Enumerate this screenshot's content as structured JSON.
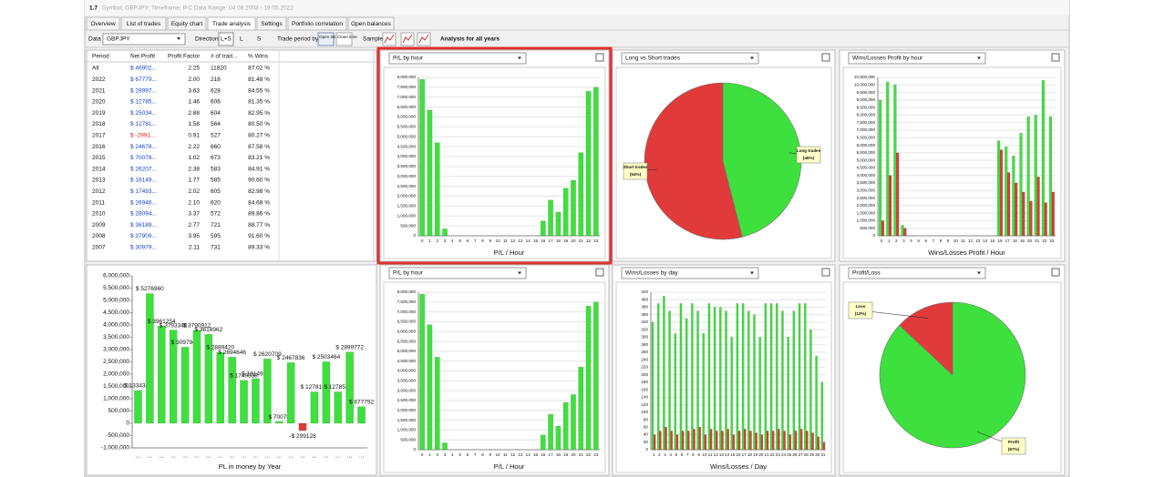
{
  "window": {
    "version": "1.7",
    "info": "Symbol: GBPJPY; Timeframe: IFC Data Range: 04.08.2003 - 19.05.2022"
  },
  "tabs": [
    "Overview",
    "List of trades",
    "Equity chart",
    "Trade analysis",
    "Settings",
    "Portfolio correlation",
    "Open balances"
  ],
  "toolbar": {
    "data_label": "Data",
    "symbol": "GBPJPY",
    "direction_label": "Direction",
    "directions": [
      "L+S",
      "L",
      "S"
    ],
    "trade_period_label": "Trade period by",
    "period_options": [
      "Open time",
      "Close time"
    ],
    "sample_label": "Sample",
    "analysis": "Analysis for all years"
  },
  "table": {
    "columns": [
      "Period",
      "Net Profit",
      "Profit Factor",
      "# of trad...",
      "% Wins"
    ],
    "rows": [
      [
        "All",
        "$ 46902...",
        "2.25",
        "11820",
        "87.02 %"
      ],
      [
        "2022",
        "$ 67779...",
        "2.00",
        "216",
        "81.48 %"
      ],
      [
        "2021",
        "$ 28997...",
        "3.63",
        "628",
        "84.55 %"
      ],
      [
        "2020",
        "$ 12785...",
        "1.46",
        "606",
        "81.35 %"
      ],
      [
        "2019",
        "$ 25034...",
        "2.88",
        "604",
        "82.95 %"
      ],
      [
        "2018",
        "$ 12781...",
        "1.58",
        "564",
        "80.50 %"
      ],
      [
        "2017",
        "$ -2991...",
        "0.91",
        "527",
        "80.27 %"
      ],
      [
        "2016",
        "$ 24678...",
        "2.22",
        "660",
        "87.58 %"
      ],
      [
        "2015",
        "$ 70078...",
        "1.02",
        "673",
        "83.21 %"
      ],
      [
        "2014",
        "$ 26207...",
        "2.38",
        "583",
        "84.91 %"
      ],
      [
        "2013",
        "$ 18149...",
        "1.77",
        "585",
        "90.60 %"
      ],
      [
        "2012",
        "$ 17493...",
        "2.02",
        "605",
        "82.98 %"
      ],
      [
        "2011",
        "$ 26946...",
        "2.10",
        "620",
        "84.68 %"
      ],
      [
        "2010",
        "$ 28094...",
        "3.37",
        "572",
        "89.86 %"
      ],
      [
        "2009",
        "$ 36189...",
        "2.77",
        "721",
        "88.77 %"
      ],
      [
        "2008",
        "$ 37909...",
        "3.95",
        "595",
        "91.60 %"
      ],
      [
        "2007",
        "$ 30979...",
        "2.11",
        "731",
        "89.33 %"
      ]
    ]
  },
  "chart_data": [
    {
      "type": "bar",
      "title": "P/L by hour",
      "xlabel": "P/L / Hour",
      "grid": true,
      "color": "#3ee03e",
      "categories": [
        0,
        1,
        2,
        3,
        4,
        5,
        6,
        7,
        8,
        9,
        10,
        11,
        12,
        13,
        14,
        15,
        16,
        17,
        18,
        19,
        20,
        21,
        22,
        23
      ],
      "values": [
        7900000,
        6350000,
        4700000,
        350000,
        0,
        0,
        0,
        0,
        0,
        0,
        0,
        0,
        0,
        0,
        0,
        0,
        750000,
        1800000,
        1200000,
        2400000,
        2800000,
        4200000,
        7300000,
        7500000
      ],
      "ylim": [
        0,
        8000000
      ],
      "yticks": [
        0,
        {
          "value": 500000,
          "label": "500,000"
        },
        {
          "value": 1000000,
          "label": "1,000,000"
        },
        {
          "value": 1500000,
          "label": "1,500,000"
        },
        {
          "value": 2000000,
          "label": "2,000,000"
        },
        {
          "value": 2500000,
          "label": "2,500,000"
        },
        {
          "value": 3000000,
          "label": "3,000,000"
        },
        {
          "value": 3500000,
          "label": "3,500,000"
        },
        {
          "value": 4000000,
          "label": "4,000,000"
        },
        {
          "value": 4500000,
          "label": "4,500,000"
        },
        {
          "value": 5000000,
          "label": "5,000,000"
        },
        {
          "value": 5500000,
          "label": "5,500,000"
        },
        {
          "value": 6000000,
          "label": "6,000,000"
        },
        {
          "value": 6500000,
          "label": "6,500,000"
        },
        {
          "value": 7000000,
          "label": "7,000,000"
        },
        {
          "value": 7500000,
          "label": "7,500,000"
        },
        {
          "value": 8000000,
          "label": "8,000,000"
        }
      ]
    },
    {
      "type": "pie",
      "title": "Long vs Short trades",
      "categories": [
        "Long trades",
        "Short trades"
      ],
      "values": [
        46,
        54
      ],
      "value_labels": [
        "(46%)",
        "(54%)"
      ],
      "colors": [
        "#3ee03e",
        "#e03a3a"
      ]
    },
    {
      "type": "bar",
      "title": "Wins/Losses Profit by hour",
      "xlabel": "Wins/Losses Profit / Hour",
      "grid": true,
      "categories": [
        0,
        1,
        2,
        3,
        4,
        5,
        6,
        7,
        8,
        9,
        10,
        11,
        12,
        13,
        14,
        15,
        16,
        17,
        18,
        19,
        20,
        21,
        22,
        23
      ],
      "series": [
        {
          "color": "#3ee03e",
          "values": [
            9000000,
            10200000,
            10000000,
            700000,
            0,
            0,
            0,
            0,
            0,
            0,
            0,
            0,
            0,
            0,
            0,
            0,
            6300000,
            5900000,
            5300000,
            6800000,
            7900000,
            8000000,
            10300000,
            7900000
          ]
        },
        {
          "color": "#e03a3a",
          "values": [
            1000000,
            4000000,
            5500000,
            500000,
            0,
            0,
            0,
            0,
            0,
            0,
            0,
            0,
            0,
            0,
            0,
            0,
            5700000,
            4200000,
            3500000,
            2900000,
            2300000,
            3900000,
            2200000,
            2900000
          ]
        }
      ],
      "ylim": [
        0,
        10500000
      ],
      "yticks": [
        0,
        {
          "value": 500000,
          "label": "500,000"
        },
        {
          "value": 1000000,
          "label": "1,000,000"
        },
        {
          "value": 1500000,
          "label": "1,500,000"
        },
        {
          "value": 2000000,
          "label": "2,000,000"
        },
        {
          "value": 2500000,
          "label": "2,500,000"
        },
        {
          "value": 3000000,
          "label": "3,000,000"
        },
        {
          "value": 3500000,
          "label": "3,500,000"
        },
        {
          "value": 4000000,
          "label": "4,000,000"
        },
        {
          "value": 4500000,
          "label": "4,500,000"
        },
        {
          "value": 5000000,
          "label": "5,000,000"
        },
        {
          "value": 5500000,
          "label": "5,500,000"
        },
        {
          "value": 6000000,
          "label": "6,000,000"
        },
        {
          "value": 6500000,
          "label": "6,500,000"
        },
        {
          "value": 7000000,
          "label": "7,000,000"
        },
        {
          "value": 7500000,
          "label": "7,500,000"
        },
        {
          "value": 8000000,
          "label": "8,000,000"
        },
        {
          "value": 8500000,
          "label": "8,500,000"
        },
        {
          "value": 9000000,
          "label": "9,000,000"
        },
        {
          "value": 9500000,
          "label": "9,500,000"
        },
        {
          "value": 10000000,
          "label": "10,000,000"
        },
        {
          "value": 10500000,
          "label": "10,500,000"
        }
      ]
    },
    {
      "type": "bar",
      "xlabel": "PL in money by Year",
      "grid": false,
      "categories": [
        "...",
        "...",
        "...",
        "...",
        "...",
        "...",
        "...",
        "...",
        "...",
        "...",
        "...",
        "...",
        "...",
        "...",
        "...",
        "...",
        "...",
        "...",
        "...",
        "..."
      ],
      "values": [
        1334346,
        5276960,
        3961254,
        3793346,
        3097946,
        3790912,
        3618962,
        2889420,
        2694646,
        1749338,
        1814930,
        2620709,
        70078,
        2467836,
        -299128,
        1278189,
        2503464,
        1278539,
        2899772,
        677792
      ],
      "value_labels": [
        "$ 1334346",
        "$ 5276960",
        "$ 3961254",
        "$ 3793346",
        "$ 3097946",
        "$ 3790912",
        "$ 3618962",
        "$ 2889420",
        "$ 2694646",
        "$ 1749338",
        "$ 1814930",
        "$ 2620709",
        "$ 70078",
        "$ 2467836",
        "-$ 299128",
        "$ 1278189",
        "$ 2503464",
        "$ 1278539",
        "$ 2899772",
        "$ 677792"
      ],
      "colors": {
        "positive": "#3ee03e",
        "negative": "#e03a3a"
      },
      "ylim": [
        -1000000,
        6000000
      ],
      "yticks": [
        {
          "value": -1000000,
          "label": "-1,000,000"
        },
        {
          "value": -500000,
          "label": "-500,000"
        },
        0,
        {
          "value": 500000,
          "label": "500,000"
        },
        {
          "value": 1000000,
          "label": "1,000,000"
        },
        {
          "value": 1500000,
          "label": "1,500,000"
        },
        {
          "value": 2000000,
          "label": "2,000,000"
        },
        {
          "value": 2500000,
          "label": "2,500,000"
        },
        {
          "value": 3000000,
          "label": "3,000,000"
        },
        {
          "value": 3500000,
          "label": "3,500,000"
        },
        {
          "value": 4000000,
          "label": "4,000,000"
        },
        {
          "value": 4500000,
          "label": "4,500,000"
        },
        {
          "value": 5000000,
          "label": "5,000,000"
        },
        {
          "value": 5500000,
          "label": "5,500,000"
        },
        {
          "value": 6000000,
          "label": "6,000,000"
        }
      ]
    },
    {
      "type": "bar",
      "title": "P/L by hour",
      "xlabel": "P/L / Hour",
      "grid": true,
      "color": "#3ee03e",
      "categories": [
        0,
        1,
        2,
        3,
        4,
        5,
        6,
        7,
        8,
        9,
        10,
        11,
        12,
        13,
        14,
        15,
        16,
        17,
        18,
        19,
        20,
        21,
        22,
        23
      ],
      "values": [
        7900000,
        6350000,
        4700000,
        350000,
        0,
        0,
        0,
        0,
        0,
        0,
        0,
        0,
        0,
        0,
        0,
        0,
        750000,
        1800000,
        1200000,
        2400000,
        2800000,
        4200000,
        7300000,
        7500000
      ],
      "ylim": [
        0,
        8000000
      ],
      "yticks": [
        0,
        {
          "value": 500000,
          "label": "500,000"
        },
        {
          "value": 1000000,
          "label": "1,000,000"
        },
        {
          "value": 1500000,
          "label": "1,500,000"
        },
        {
          "value": 2000000,
          "label": "2,000,000"
        },
        {
          "value": 2500000,
          "label": "2,500,000"
        },
        {
          "value": 3000000,
          "label": "3,000,000"
        },
        {
          "value": 3500000,
          "label": "3,500,000"
        },
        {
          "value": 4000000,
          "label": "4,000,000"
        },
        {
          "value": 4500000,
          "label": "4,500,000"
        },
        {
          "value": 5000000,
          "label": "5,000,000"
        },
        {
          "value": 5500000,
          "label": "5,500,000"
        },
        {
          "value": 6000000,
          "label": "6,000,000"
        },
        {
          "value": 6500000,
          "label": "6,500,000"
        },
        {
          "value": 7000000,
          "label": "7,000,000"
        },
        {
          "value": 7500000,
          "label": "7,500,000"
        },
        {
          "value": 8000000,
          "label": "8,000,000"
        }
      ]
    },
    {
      "type": "bar",
      "title": "Wins/Losses by day",
      "xlabel": "Wins/Losses / Day",
      "grid": true,
      "categories": [
        1,
        2,
        3,
        4,
        5,
        6,
        7,
        8,
        9,
        10,
        11,
        12,
        13,
        14,
        15,
        16,
        17,
        18,
        19,
        20,
        21,
        22,
        23,
        24,
        25,
        26,
        27,
        28,
        29,
        30,
        31
      ],
      "series": [
        {
          "color": "#3ee03e",
          "values": [
            340,
            390,
            410,
            370,
            310,
            390,
            350,
            390,
            370,
            310,
            390,
            380,
            380,
            370,
            300,
            390,
            390,
            370,
            360,
            300,
            390,
            390,
            390,
            370,
            300,
            370,
            390,
            390,
            320,
            250,
            180
          ]
        },
        {
          "color": "#e03a3a",
          "values": [
            40,
            50,
            60,
            50,
            40,
            50,
            50,
            55,
            60,
            40,
            55,
            50,
            50,
            55,
            40,
            50,
            55,
            50,
            45,
            40,
            50,
            50,
            55,
            50,
            40,
            50,
            55,
            50,
            45,
            35,
            20
          ]
        }
      ],
      "ylim": [
        0,
        420
      ],
      "yticks": [
        0,
        20,
        40,
        60,
        80,
        100,
        120,
        140,
        160,
        180,
        200,
        220,
        240,
        260,
        280,
        300,
        320,
        340,
        360,
        380,
        400,
        420
      ]
    },
    {
      "type": "pie",
      "title": "Profit/Loss",
      "categories": [
        "Profit",
        "Loss"
      ],
      "values": [
        87,
        13
      ],
      "value_labels": [
        "(87%)",
        "(13%)"
      ],
      "colors": [
        "#3ee03e",
        "#e03a3a"
      ]
    }
  ]
}
